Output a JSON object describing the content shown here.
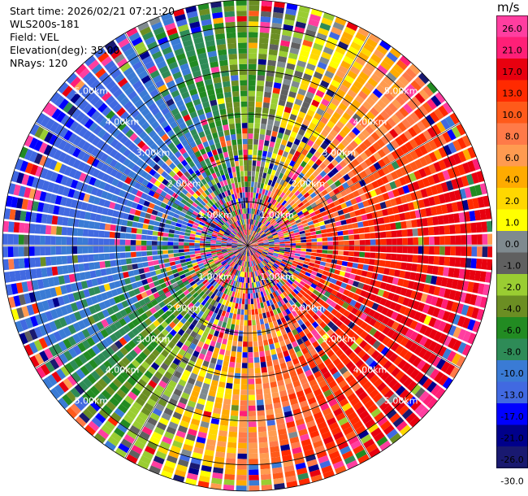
{
  "info": {
    "start_time": "Start time: 2026/02/21 07:21:20",
    "instrument": "WLS200s-181",
    "field": "Field: VEL",
    "elevation": "Elevation(deg): 35.00",
    "nrays": "NRays: 120"
  },
  "colorbar": {
    "unit": "m/s",
    "ticks": [
      "26.0",
      "21.0",
      "17.0",
      "13.0",
      "10.0",
      "8.0",
      "6.0",
      "4.0",
      "2.0",
      "1.0",
      "0.0",
      "-1.0",
      "-2.0",
      "-4.0",
      "-6.0",
      "-8.0",
      "-10.0",
      "-13.0",
      "-17.0",
      "-21.0",
      "-26.0",
      "-30.0"
    ],
    "colors": [
      "#ff3ea0",
      "#ff1f77",
      "#e8000f",
      "#ff2a00",
      "#ff5a1a",
      "#ff7a48",
      "#ff9b50",
      "#ffab00",
      "#ffd700",
      "#ffff00",
      "#7f8a8f",
      "#606060",
      "#9acd32",
      "#6b8e23",
      "#228b22",
      "#2e8b57",
      "#3a7bd5",
      "#4169e1",
      "#0000ff",
      "#00008b",
      "#191970"
    ]
  },
  "chart_data": {
    "type": "ppi",
    "title": "",
    "range_ring_labels": [
      "1.00km",
      "2.00km",
      "3.00km",
      "4.00km",
      "5.00km"
    ],
    "range_rings_km": [
      1,
      2,
      3,
      4,
      5
    ],
    "nrays": 120,
    "field": "VEL",
    "elevation_deg": 35.0,
    "vmin": -30.0,
    "vmax": 30.0
  }
}
